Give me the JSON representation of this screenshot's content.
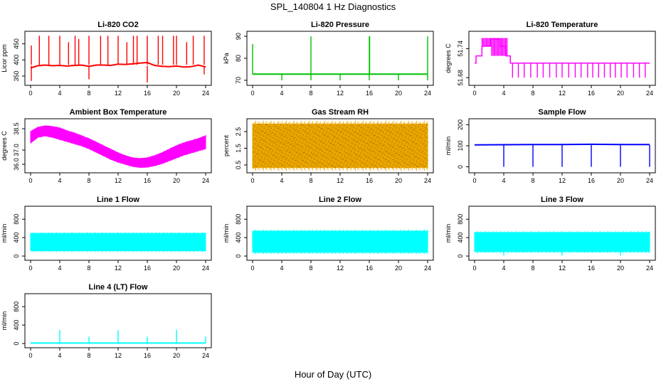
{
  "figure": {
    "title": "SPL_140804  1 Hz Diagnostics",
    "xlabel": "Hour of Day (UTC)"
  },
  "chart_data": [
    {
      "id": "co2",
      "type": "line",
      "title": "Li-820 CO2",
      "xlabel": "",
      "ylabel": "Licor ppm",
      "color": "#ff0000",
      "xlim": [
        0,
        24
      ],
      "ylim": [
        330,
        480
      ],
      "xticks": [
        0,
        4,
        8,
        12,
        16,
        20,
        24
      ],
      "yticks": [
        350,
        400,
        450
      ],
      "series": [
        {
          "style": "line",
          "x": [
            0,
            1,
            2,
            3,
            4,
            5,
            6,
            7,
            8,
            9,
            10,
            11,
            12,
            13,
            14,
            15,
            16,
            17,
            18,
            19,
            20,
            21,
            22,
            23,
            24
          ],
          "values": [
            375,
            382,
            384,
            382,
            383,
            381,
            383,
            384,
            380,
            384,
            384,
            383,
            387,
            386,
            388,
            390,
            392,
            383,
            380,
            379,
            381,
            378,
            379,
            384,
            378
          ]
        },
        {
          "style": "spikes",
          "base": 385,
          "x": [
            0.1,
            1.2,
            2.5,
            4.0,
            5.2,
            6.1,
            6.6,
            8.0,
            9.6,
            10.6,
            12.0,
            13.2,
            14.1,
            14.6,
            16.0,
            17.5,
            18.1,
            19.6,
            20.0,
            21.4,
            22.3,
            23.8
          ],
          "values": [
            445,
            475,
            475,
            475,
            455,
            475,
            465,
            475,
            475,
            475,
            475,
            455,
            475,
            475,
            475,
            475,
            475,
            475,
            475,
            455,
            475,
            475
          ]
        },
        {
          "style": "spikes",
          "base": 382,
          "x": [
            0.1,
            8.0,
            16.0,
            23.8
          ],
          "values": [
            335,
            340,
            330,
            355
          ]
        }
      ]
    },
    {
      "id": "pressure",
      "type": "line",
      "title": "Li-820 Pressure",
      "xlabel": "",
      "ylabel": "kPa",
      "color": "#00c000",
      "xlim": [
        0,
        24
      ],
      "ylim": [
        69,
        91
      ],
      "xticks": [
        0,
        4,
        8,
        12,
        16,
        20,
        24
      ],
      "yticks": [
        70,
        80,
        90
      ],
      "series": [
        {
          "style": "line",
          "x": [
            0,
            24
          ],
          "values": [
            72.8,
            72.8
          ]
        },
        {
          "style": "spikes",
          "base": 72.8,
          "x": [
            0,
            8,
            16,
            16.05,
            24
          ],
          "values": [
            86.5,
            90,
            90,
            90,
            90
          ]
        },
        {
          "style": "spikes",
          "base": 72.8,
          "x": [
            4,
            8,
            12,
            16,
            20,
            24
          ],
          "values": [
            70,
            70,
            70,
            70,
            70,
            70
          ]
        }
      ]
    },
    {
      "id": "licor_temp",
      "type": "line",
      "title": "Li-820 Temperature",
      "xlabel": "",
      "ylabel": "degrees C",
      "color": "#ff00ff",
      "xlim": [
        0,
        24
      ],
      "ylim": [
        51.67,
        51.77
      ],
      "xticks": [
        0,
        4,
        8,
        12,
        16,
        20,
        24
      ],
      "yticks": [
        51.68,
        51.74
      ],
      "ytick_labels": [
        "51.68",
        "51.74"
      ],
      "series": [
        {
          "style": "step",
          "x": [
            0,
            0.2,
            1.0,
            2.2,
            3.5,
            4.3,
            4.9,
            24
          ],
          "values": [
            51.71,
            51.725,
            51.745,
            51.76,
            51.745,
            51.725,
            51.71,
            51.71
          ]
        },
        {
          "style": "spikes",
          "base": 51.71,
          "x": [
            5.2,
            6.0,
            6.8,
            7.7,
            8.6,
            9.4,
            10.3,
            11.2,
            12.0,
            12.9,
            13.8,
            14.6,
            15.5,
            16.2,
            17.0,
            17.8,
            18.6,
            19.3,
            20.1,
            20.9,
            21.8,
            22.6,
            23.4
          ],
          "values": [
            51.68,
            51.68,
            51.68,
            51.68,
            51.68,
            51.68,
            51.68,
            51.68,
            51.68,
            51.68,
            51.68,
            51.68,
            51.68,
            51.68,
            51.68,
            51.68,
            51.68,
            51.68,
            51.68,
            51.68,
            51.68,
            51.68,
            51.68
          ]
        }
      ]
    },
    {
      "id": "box_temp",
      "type": "line",
      "title": "Ambient Box Temperature",
      "xlabel": "",
      "ylabel": "degrees C",
      "color": "#ff00ff",
      "xlim": [
        0,
        24
      ],
      "ylim": [
        35.6,
        39.0
      ],
      "xticks": [
        0,
        4,
        8,
        12,
        16,
        20,
        24
      ],
      "yticks": [
        36.0,
        37.0,
        38.5
      ],
      "ytick_labels": [
        "36.0",
        "37.0",
        "38.5"
      ],
      "series": [
        {
          "style": "band",
          "x": [
            0,
            1,
            2,
            3,
            4,
            5,
            6,
            7,
            8,
            9,
            10,
            11,
            12,
            13,
            14,
            15,
            16,
            17,
            18,
            19,
            20,
            21,
            22,
            23,
            24
          ],
          "low": [
            37.5,
            37.9,
            38.0,
            37.9,
            37.75,
            37.6,
            37.45,
            37.3,
            37.1,
            36.85,
            36.6,
            36.35,
            36.15,
            36.0,
            35.85,
            35.78,
            35.8,
            35.9,
            36.05,
            36.25,
            36.45,
            36.65,
            36.8,
            36.95,
            37.1
          ],
          "high": [
            38.3,
            38.6,
            38.7,
            38.65,
            38.55,
            38.35,
            38.2,
            38.0,
            37.8,
            37.55,
            37.3,
            37.05,
            36.8,
            36.6,
            36.45,
            36.4,
            36.45,
            36.6,
            36.8,
            37.05,
            37.3,
            37.5,
            37.65,
            37.8,
            38.0
          ]
        }
      ]
    },
    {
      "id": "rh",
      "type": "line",
      "title": "Gas Stream RH",
      "xlabel": "",
      "ylabel": "percent",
      "color": "#e8a500",
      "xlim": [
        0,
        24
      ],
      "ylim": [
        0.2,
        3.1
      ],
      "xticks": [
        0,
        4,
        8,
        12,
        16,
        20,
        24
      ],
      "yticks": [
        0.5,
        1.5,
        2.5
      ],
      "series": [
        {
          "style": "band",
          "x": [
            0,
            4,
            8,
            12,
            16,
            20,
            24
          ],
          "low": [
            0.35,
            0.35,
            0.35,
            0.35,
            0.35,
            0.35,
            0.35
          ],
          "high": [
            2.95,
            2.95,
            2.95,
            2.95,
            2.95,
            2.95,
            2.95
          ]
        }
      ]
    },
    {
      "id": "sample_flow",
      "type": "line",
      "title": "Sample Flow",
      "xlabel": "",
      "ylabel": "ml/min",
      "color": "#0000ff",
      "xlim": [
        0,
        24
      ],
      "ylim": [
        -15,
        215
      ],
      "xticks": [
        0,
        4,
        8,
        12,
        16,
        20,
        24
      ],
      "yticks": [
        0,
        100,
        200
      ],
      "series": [
        {
          "style": "line",
          "x": [
            0,
            4,
            8,
            12,
            16,
            20,
            24
          ],
          "values": [
            104,
            105,
            106,
            106,
            107,
            106,
            106
          ]
        },
        {
          "style": "spikes",
          "base": 104,
          "x": [
            4,
            8,
            12,
            16,
            20,
            24
          ],
          "values": [
            0,
            0,
            0,
            0,
            0,
            0
          ]
        }
      ]
    },
    {
      "id": "line1_flow",
      "type": "line",
      "title": "Line 1 Flow",
      "xlabel": "",
      "ylabel": "ml/min",
      "color": "#00ffff",
      "xlim": [
        0,
        24
      ],
      "ylim": [
        -30,
        1020
      ],
      "xticks": [
        0,
        4,
        8,
        12,
        16,
        20,
        24
      ],
      "yticks": [
        0,
        400,
        800
      ],
      "series": [
        {
          "style": "band",
          "x": [
            0,
            24
          ],
          "low": [
            115,
            115
          ],
          "high": [
            490,
            490
          ]
        }
      ]
    },
    {
      "id": "line2_flow",
      "type": "line",
      "title": "Line 2 Flow",
      "xlabel": "",
      "ylabel": "ml/min",
      "color": "#00ffff",
      "xlim": [
        0,
        24
      ],
      "ylim": [
        -30,
        1020
      ],
      "xticks": [
        0,
        4,
        8,
        12,
        16,
        20,
        24
      ],
      "yticks": [
        0,
        400,
        800
      ],
      "series": [
        {
          "style": "band",
          "x": [
            0,
            24
          ],
          "low": [
            80,
            80
          ],
          "high": [
            540,
            540
          ]
        }
      ]
    },
    {
      "id": "line3_flow",
      "type": "line",
      "title": "Line 3 Flow",
      "xlabel": "",
      "ylabel": "ml/min",
      "color": "#00ffff",
      "xlim": [
        0,
        24
      ],
      "ylim": [
        -30,
        1020
      ],
      "xticks": [
        0,
        4,
        8,
        12,
        16,
        20,
        24
      ],
      "yticks": [
        0,
        400,
        800
      ],
      "series": [
        {
          "style": "band",
          "x": [
            0,
            24
          ],
          "low": [
            95,
            95
          ],
          "high": [
            510,
            510
          ]
        },
        {
          "style": "spikes",
          "base": 120,
          "x": [
            4,
            12,
            20
          ],
          "values": [
            10,
            10,
            10
          ]
        }
      ]
    },
    {
      "id": "line4_flow",
      "type": "line",
      "title": "Line 4 (LT) Flow",
      "xlabel": "",
      "ylabel": "ml/min",
      "color": "#00ffff",
      "xlim": [
        0,
        24
      ],
      "ylim": [
        -30,
        1020
      ],
      "xticks": [
        0,
        4,
        8,
        12,
        16,
        20,
        24
      ],
      "yticks": [
        0,
        400,
        800
      ],
      "series": [
        {
          "style": "line",
          "x": [
            0,
            24
          ],
          "values": [
            10,
            10
          ]
        },
        {
          "style": "spikes",
          "base": 10,
          "x": [
            4,
            8,
            12,
            16,
            20,
            24
          ],
          "values": [
            290,
            150,
            290,
            150,
            300,
            150
          ]
        }
      ]
    }
  ]
}
